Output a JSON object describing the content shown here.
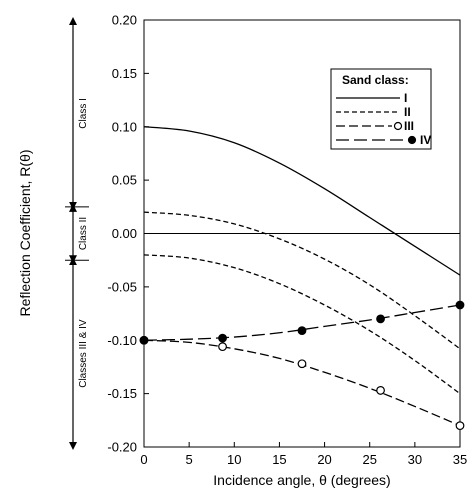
{
  "chart_data": {
    "type": "line",
    "xlabel": "Incidence angle, θ (degrees)",
    "ylabel": "Reflection Coefficient, R(θ)",
    "xlim": [
      0,
      35
    ],
    "ylim": [
      -0.2,
      0.2
    ],
    "xticks": [
      0,
      5,
      10,
      15,
      20,
      25,
      30,
      35
    ],
    "xtick_labels": [
      "0",
      "5",
      "10",
      "15",
      "20",
      "25",
      "30",
      "35"
    ],
    "yticks": [
      -0.2,
      -0.15,
      -0.1,
      -0.05,
      0.0,
      0.05,
      0.1,
      0.15,
      0.2
    ],
    "ytick_labels": [
      "-0.20",
      "-0.15",
      "-0.10",
      "-0.05",
      "0.00",
      "0.05",
      "0.10",
      "0.15",
      "0.20"
    ],
    "grid": false,
    "legend": {
      "title": "Sand class:",
      "position": "top-right",
      "entries": [
        "I",
        "II",
        "III",
        "IV"
      ]
    },
    "zero_line": true,
    "series": [
      {
        "name": "I",
        "style": "solid",
        "marker": "none",
        "x": [
          0,
          5,
          10,
          15,
          20,
          25,
          30,
          35
        ],
        "y": [
          0.1,
          0.096,
          0.085,
          0.066,
          0.042,
          0.015,
          -0.012,
          -0.039
        ]
      },
      {
        "name": "II",
        "style": "short-dash",
        "marker": "none",
        "x": [
          0,
          5,
          10,
          15,
          20,
          25,
          30,
          35
        ],
        "y": [
          0.02,
          0.017,
          0.009,
          -0.005,
          -0.024,
          -0.048,
          -0.077,
          -0.108
        ]
      },
      {
        "name": "II",
        "style": "short-dash",
        "marker": "none",
        "x": [
          0,
          5,
          10,
          15,
          20,
          25,
          30,
          35
        ],
        "y": [
          -0.02,
          -0.023,
          -0.032,
          -0.047,
          -0.067,
          -0.091,
          -0.119,
          -0.15
        ]
      },
      {
        "name": "III",
        "style": "medium-dash",
        "marker": "open-circle",
        "x": [
          0,
          5,
          10,
          15,
          20,
          25,
          30,
          35
        ],
        "y": [
          -0.1,
          -0.102,
          -0.108,
          -0.117,
          -0.13,
          -0.145,
          -0.162,
          -0.18
        ],
        "marker_x": [
          0,
          8.7,
          17.5,
          26.2,
          35
        ],
        "marker_y": [
          -0.1,
          -0.106,
          -0.122,
          -0.147,
          -0.18
        ]
      },
      {
        "name": "IV",
        "style": "long-dash",
        "marker": "filled-circle",
        "x": [
          0,
          5,
          10,
          15,
          20,
          25,
          30,
          35
        ],
        "y": [
          -0.1,
          -0.099,
          -0.097,
          -0.093,
          -0.087,
          -0.081,
          -0.074,
          -0.067
        ],
        "marker_x": [
          0,
          8.7,
          17.5,
          26.2,
          35
        ],
        "marker_y": [
          -0.1,
          -0.098,
          -0.091,
          -0.08,
          -0.067
        ]
      }
    ],
    "annotations": [
      {
        "label": "Class I",
        "from": 0.2,
        "to": 0.025
      },
      {
        "label": "Class II",
        "from": 0.025,
        "to": -0.025
      },
      {
        "label": "Classes III & IV",
        "from": -0.025,
        "to": -0.2
      }
    ]
  }
}
